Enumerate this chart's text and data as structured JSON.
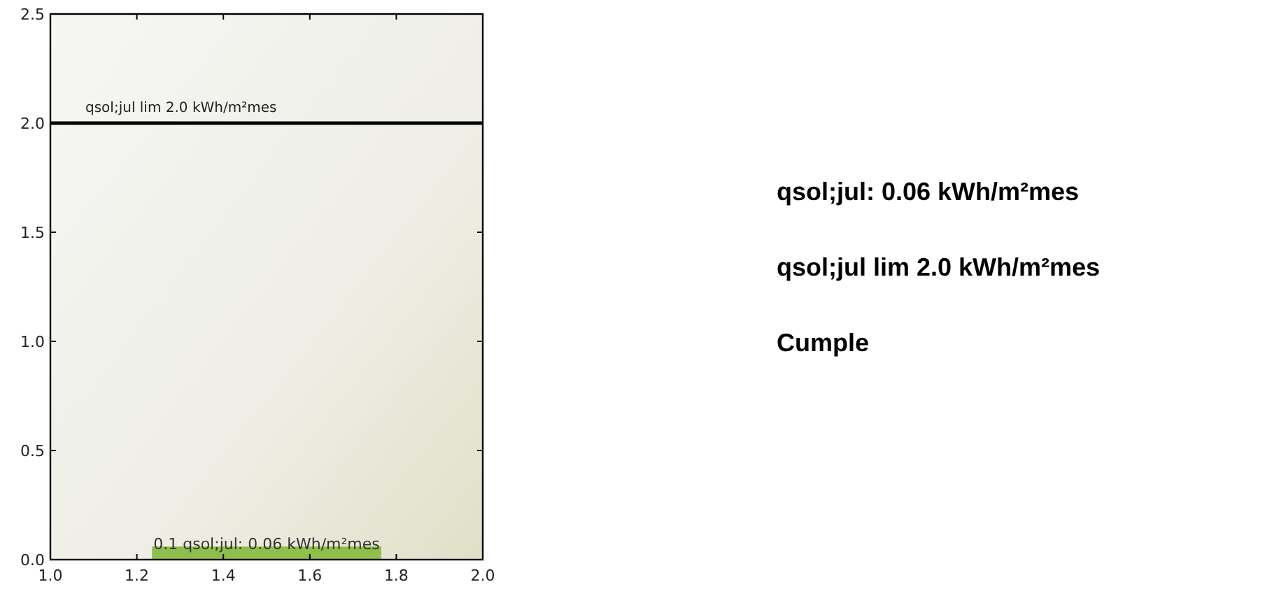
{
  "chart_data": {
    "type": "bar",
    "x": [
      1.5
    ],
    "values": [
      0.06
    ],
    "color": "#8fbf4a",
    "xlim": [
      1.0,
      2.0
    ],
    "xticks": [
      {
        "value": 1.0,
        "label": "1.0"
      },
      {
        "value": 1.2,
        "label": "1.2"
      },
      {
        "value": 1.4,
        "label": "1.4"
      },
      {
        "value": 1.6,
        "label": "1.6"
      },
      {
        "value": 1.8,
        "label": "1.8"
      },
      {
        "value": 2.0,
        "label": "2.0"
      }
    ],
    "ylim": [
      0,
      2.5
    ],
    "yticks": [
      {
        "value": 0,
        "label": "0.0"
      },
      {
        "value": 0.5,
        "label": "0.5"
      },
      {
        "value": 1.0,
        "label": "1.0"
      },
      {
        "value": 1.5,
        "label": "1.5"
      },
      {
        "value": 2.0,
        "label": "2.0"
      },
      {
        "value": 2.5,
        "label": "2.5"
      }
    ],
    "ref_lines": [
      {
        "axis": "y",
        "value": 2.0,
        "label": "qsol;jul lim 2.0 kWh/m²mes",
        "color": "#000000"
      }
    ],
    "annotations": [
      {
        "text": "0.1 qsol;jul: 0.06 kWh/m²mes",
        "x": 1.5,
        "y": 0.06
      },
      "qsol;jul: 0.06 kWh/m²mes",
      "qsol;jul lim 2.0 kWh/m²mes",
      "Cumple"
    ]
  }
}
